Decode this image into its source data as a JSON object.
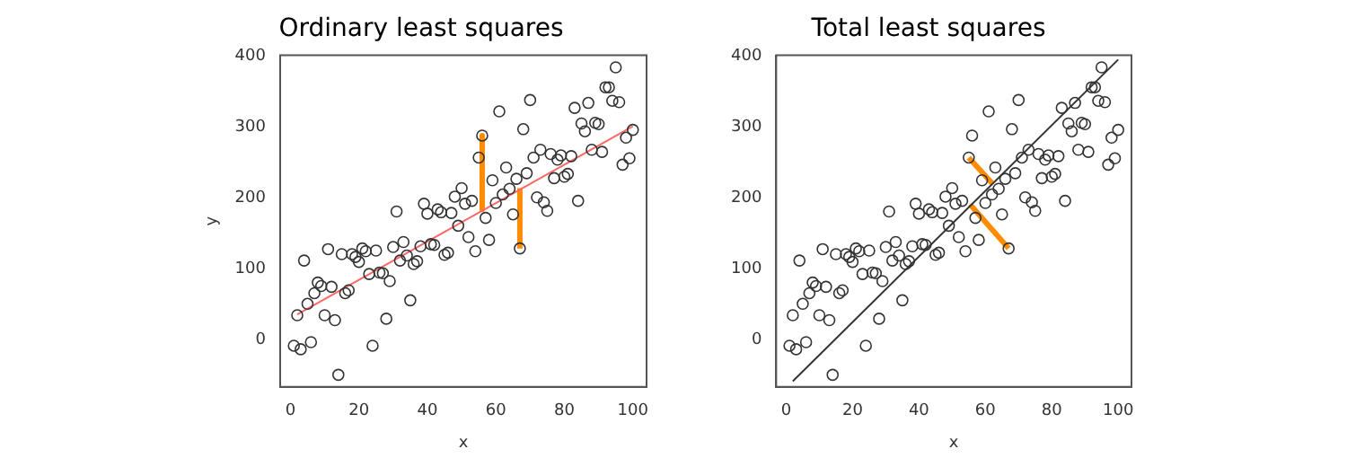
{
  "chart_data": [
    {
      "type": "scatter",
      "title": "Ordinary least squares",
      "xlabel": "x",
      "ylabel": "y",
      "xlim": [
        -3,
        104
      ],
      "ylim": [
        -66,
        401
      ],
      "xticks": [
        0,
        20,
        40,
        60,
        80,
        100
      ],
      "yticks": [
        0,
        100,
        200,
        300,
        400
      ],
      "grid": false,
      "legend": false,
      "x": [
        1,
        2,
        3,
        4,
        5,
        6,
        7,
        8,
        9,
        10,
        11,
        12,
        13,
        14,
        15,
        16,
        17,
        18,
        19,
        20,
        21,
        22,
        23,
        24,
        25,
        26,
        27,
        28,
        29,
        30,
        31,
        32,
        33,
        34,
        35,
        36,
        37,
        38,
        39,
        40,
        41,
        42,
        43,
        44,
        45,
        46,
        47,
        48,
        49,
        50,
        51,
        52,
        53,
        54,
        55,
        56,
        57,
        58,
        59,
        60,
        61,
        62,
        63,
        64,
        65,
        66,
        67,
        68,
        69,
        70,
        71,
        72,
        73,
        74,
        75,
        76,
        77,
        78,
        79,
        80,
        81,
        82,
        83,
        84,
        85,
        86,
        87,
        88,
        89,
        90,
        91,
        92,
        93,
        94,
        95,
        96,
        97,
        98,
        99,
        100
      ],
      "series": [
        {
          "marker": "circle",
          "color": "#333333",
          "values": [
            -8,
            35,
            -13,
            112,
            51,
            -3,
            66,
            81,
            76,
            35,
            128,
            75,
            28,
            -49,
            121,
            66,
            70,
            121,
            117,
            110,
            129,
            125,
            93,
            -8,
            126,
            95,
            94,
            30,
            83,
            131,
            181,
            112,
            138,
            119,
            56,
            107,
            111,
            132,
            192,
            178,
            135,
            134,
            184,
            180,
            120,
            123,
            179,
            202,
            161,
            214,
            192,
            145,
            196,
            125,
            257,
            288,
            172,
            141,
            225,
            193,
            322,
            205,
            243,
            213,
            177,
            227,
            129,
            297,
            235,
            338,
            257,
            201,
            268,
            194,
            182,
            262,
            228,
            254,
            260,
            230,
            234,
            259,
            327,
            196,
            305,
            294,
            334,
            268,
            306,
            304,
            265,
            356,
            356,
            337,
            384,
            335,
            247,
            285,
            256,
            296
          ]
        },
        {
          "type": "line",
          "color": "#ff6666",
          "x": [
            2,
            100
          ],
          "values": [
            36,
            301
          ]
        },
        {
          "type": "line",
          "color": "#ff8c00",
          "x": [
            56,
            56
          ],
          "values": [
            288,
            184
          ]
        },
        {
          "type": "line",
          "color": "#ff8c00",
          "x": [
            67,
            67
          ],
          "values": [
            129,
            214
          ]
        }
      ]
    },
    {
      "type": "scatter",
      "title": "Total least squares",
      "xlabel": "x",
      "xlim": [
        -3,
        104
      ],
      "ylim": [
        -66,
        401
      ],
      "xticks": [
        0,
        20,
        40,
        60,
        80,
        100
      ],
      "yticks": [
        0,
        100,
        200,
        300,
        400
      ],
      "grid": false,
      "legend": false,
      "x": [
        1,
        2,
        3,
        4,
        5,
        6,
        7,
        8,
        9,
        10,
        11,
        12,
        13,
        14,
        15,
        16,
        17,
        18,
        19,
        20,
        21,
        22,
        23,
        24,
        25,
        26,
        27,
        28,
        29,
        30,
        31,
        32,
        33,
        34,
        35,
        36,
        37,
        38,
        39,
        40,
        41,
        42,
        43,
        44,
        45,
        46,
        47,
        48,
        49,
        50,
        51,
        52,
        53,
        54,
        55,
        56,
        57,
        58,
        59,
        60,
        61,
        62,
        63,
        64,
        65,
        66,
        67,
        68,
        69,
        70,
        71,
        72,
        73,
        74,
        75,
        76,
        77,
        78,
        79,
        80,
        81,
        82,
        83,
        84,
        85,
        86,
        87,
        88,
        89,
        90,
        91,
        92,
        93,
        94,
        95,
        96,
        97,
        98,
        99,
        100
      ],
      "series": [
        {
          "marker": "circle",
          "color": "#333333",
          "values": [
            -8,
            35,
            -13,
            112,
            51,
            -3,
            66,
            81,
            76,
            35,
            128,
            75,
            28,
            -49,
            121,
            66,
            70,
            121,
            117,
            110,
            129,
            125,
            93,
            -8,
            126,
            95,
            94,
            30,
            83,
            131,
            181,
            112,
            138,
            119,
            56,
            107,
            111,
            132,
            192,
            178,
            135,
            134,
            184,
            180,
            120,
            123,
            179,
            202,
            161,
            214,
            192,
            145,
            196,
            125,
            257,
            288,
            172,
            141,
            225,
            193,
            322,
            205,
            243,
            213,
            177,
            227,
            129,
            297,
            235,
            338,
            257,
            201,
            268,
            194,
            182,
            262,
            228,
            254,
            260,
            230,
            234,
            259,
            327,
            196,
            305,
            294,
            334,
            268,
            306,
            304,
            265,
            356,
            356,
            337,
            384,
            335,
            247,
            285,
            256,
            296
          ]
        },
        {
          "type": "line",
          "color": "#333333",
          "x": [
            2,
            100
          ],
          "values": [
            -58,
            395
          ]
        },
        {
          "type": "line",
          "color": "#ff8c00",
          "x": [
            55,
            62
          ],
          "values": [
            257,
            221
          ]
        },
        {
          "type": "line",
          "color": "#ff8c00",
          "x": [
            55.4,
            67
          ],
          "values": [
            191,
            129
          ]
        }
      ]
    }
  ]
}
